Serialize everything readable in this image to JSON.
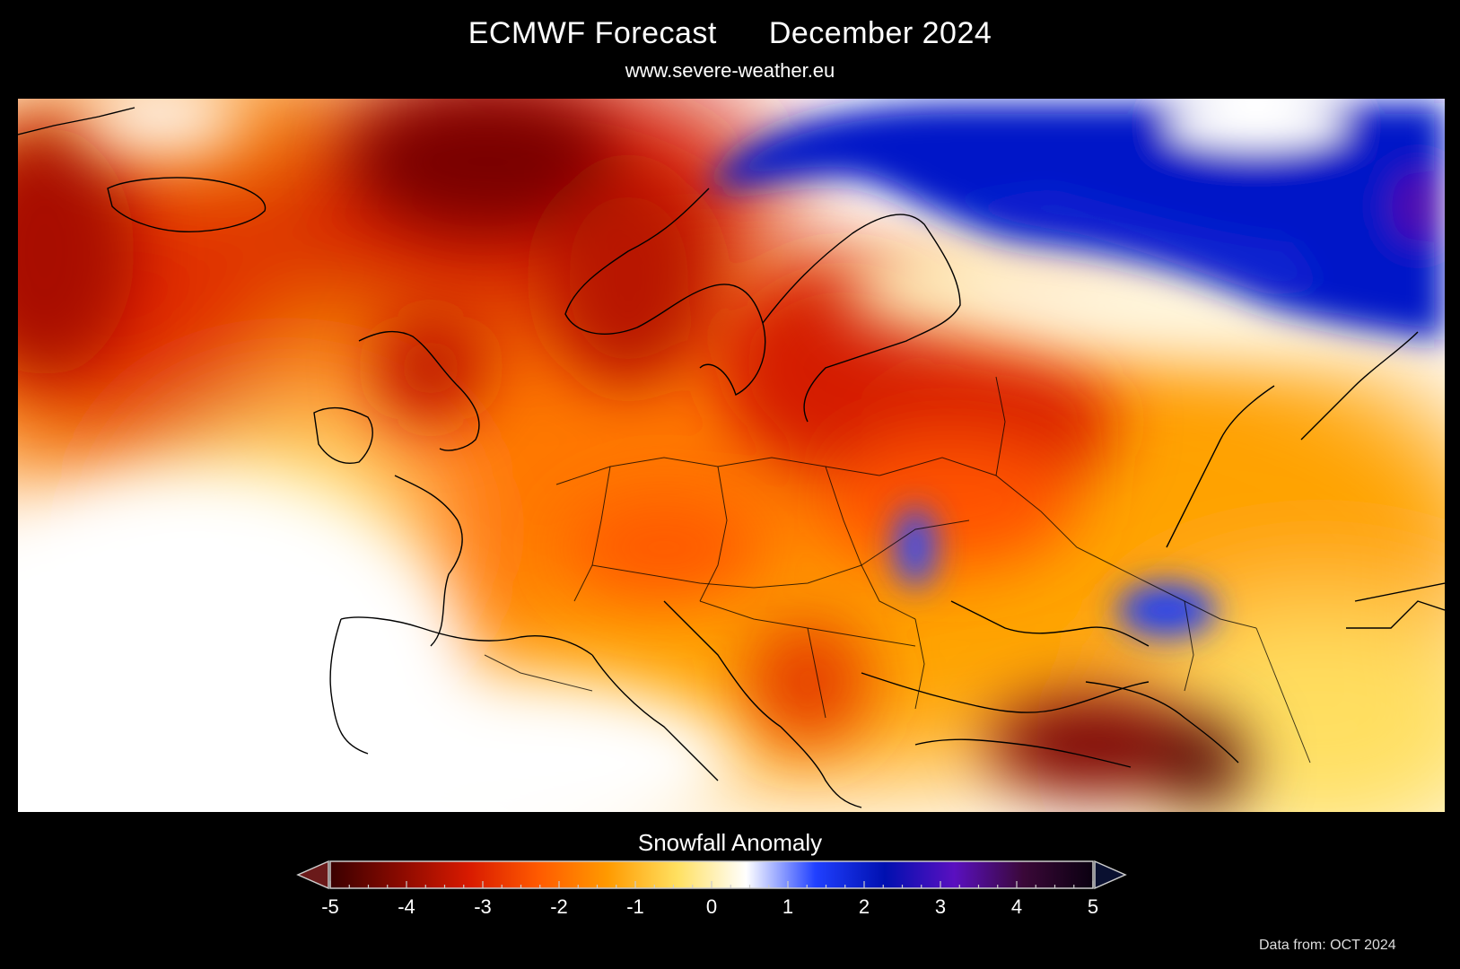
{
  "header": {
    "title_left": "ECMWF Forecast",
    "title_right": "December 2024",
    "subtitle": "www.severe-weather.eu"
  },
  "map": {
    "region": "Europe",
    "field": "snowfall anomaly"
  },
  "legend": {
    "title": "Snowfall Anomaly",
    "min": -5,
    "max": 5,
    "ticks": [
      "-5",
      "-4",
      "-3",
      "-2",
      "-1",
      "0",
      "1",
      "2",
      "3",
      "4",
      "5"
    ],
    "colors": [
      "#3a0000",
      "#8a0a00",
      "#d81a00",
      "#ff5a00",
      "#ff9a00",
      "#ffe060",
      "#ffffff",
      "#2040ff",
      "#0010b0",
      "#5a10c0",
      "#3a0838",
      "#0a0010"
    ]
  },
  "footer": {
    "source": "Data from: OCT 2024"
  }
}
